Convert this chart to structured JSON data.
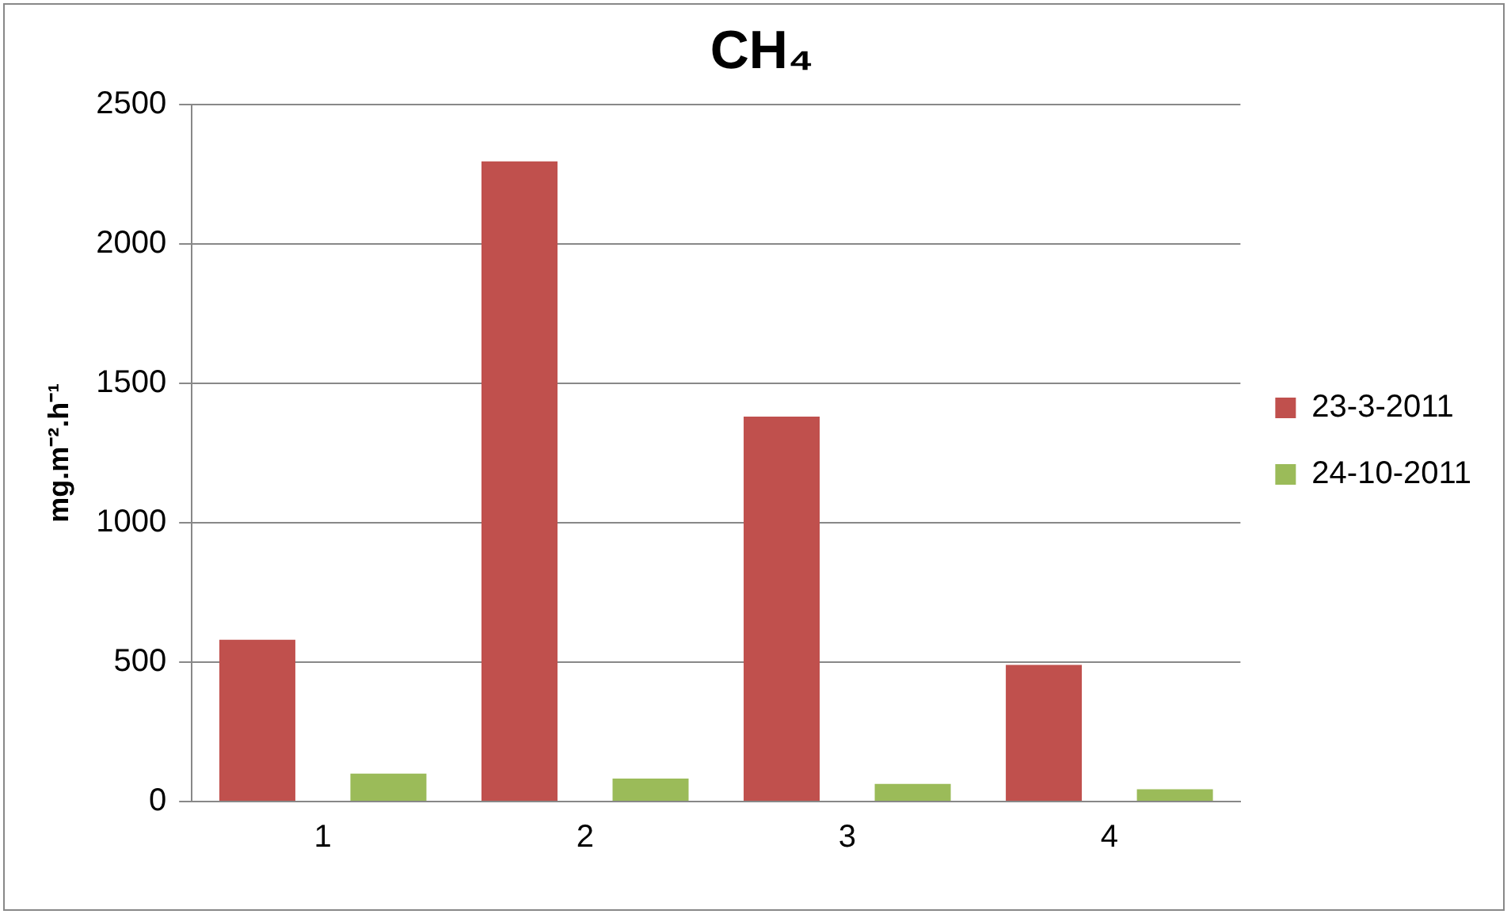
{
  "chart_data": {
    "type": "bar",
    "title": "CH₄",
    "ylabel": "mg.m⁻².h⁻¹",
    "categories": [
      "1",
      "2",
      "3",
      "4"
    ],
    "series": [
      {
        "name": "23-3-2011",
        "color": "#c0504d",
        "values": [
          580,
          2295,
          1380,
          490
        ]
      },
      {
        "name": "24-10-2011",
        "color": "#9bbb59",
        "values": [
          100,
          82,
          63,
          44
        ]
      }
    ],
    "ylim": [
      0,
      2500
    ],
    "yticks": [
      0,
      500,
      1000,
      1500,
      2000,
      2500
    ],
    "grid": "y",
    "legend": "right"
  }
}
